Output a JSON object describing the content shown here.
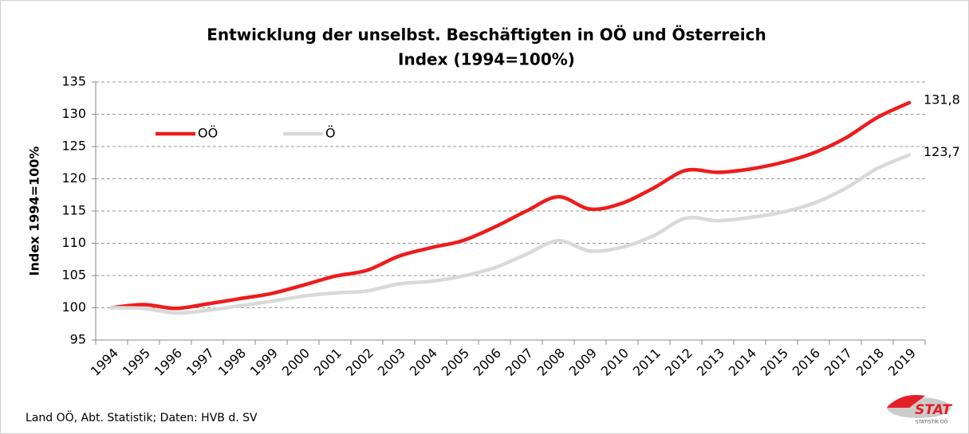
{
  "chart_data": {
    "type": "line",
    "title": [
      "Entwicklung der unselbst. Beschäftigten in OÖ und Österreich",
      "Index (1994=100%)"
    ],
    "y_label": "Index 1994=100%",
    "categories": [
      "1994",
      "1995",
      "1996",
      "1997",
      "1998",
      "1999",
      "2000",
      "2001",
      "2002",
      "2003",
      "2004",
      "2005",
      "2006",
      "2007",
      "2008",
      "2009",
      "2010",
      "2011",
      "2012",
      "2013",
      "2014",
      "2015",
      "2016",
      "2017",
      "2018",
      "2019"
    ],
    "series": [
      {
        "name": "OÖ",
        "color": "#ee1c1c",
        "values": [
          100,
          100.5,
          99.9,
          100.6,
          101.4,
          102.2,
          103.5,
          104.9,
          105.8,
          108.0,
          109.3,
          110.4,
          112.5,
          115.0,
          117.2,
          115.3,
          116.2,
          118.6,
          121.3,
          121.0,
          121.5,
          122.5,
          124.0,
          126.3,
          129.5,
          131.8
        ],
        "value_labels": [
          null,
          null,
          null,
          null,
          null,
          null,
          null,
          null,
          null,
          null,
          null,
          null,
          null,
          null,
          null,
          null,
          null,
          null,
          null,
          null,
          null,
          null,
          null,
          null,
          null,
          "131,8"
        ]
      },
      {
        "name": "Ö",
        "color": "#d9d9d9",
        "values": [
          100,
          99.9,
          99.2,
          99.6,
          100.3,
          101.0,
          101.8,
          102.3,
          102.6,
          103.7,
          104.1,
          104.9,
          106.2,
          108.3,
          110.4,
          108.8,
          109.4,
          111.2,
          113.9,
          113.5,
          114.0,
          114.8,
          116.2,
          118.5,
          121.6,
          123.7
        ],
        "value_labels": [
          null,
          null,
          null,
          null,
          null,
          null,
          null,
          null,
          null,
          null,
          null,
          null,
          null,
          null,
          null,
          null,
          null,
          null,
          null,
          null,
          null,
          null,
          null,
          null,
          null,
          "123,7"
        ]
      }
    ],
    "ylim": [
      95,
      135
    ],
    "yticks": [
      95,
      100,
      105,
      110,
      115,
      120,
      125,
      130,
      135
    ],
    "grid": true,
    "legend": "top-left",
    "source": "Land OÖ, Abt. Statistik; Daten: HVB d. SV",
    "logo": "STAT",
    "logo_sub": "STATISTIK OÖ"
  }
}
